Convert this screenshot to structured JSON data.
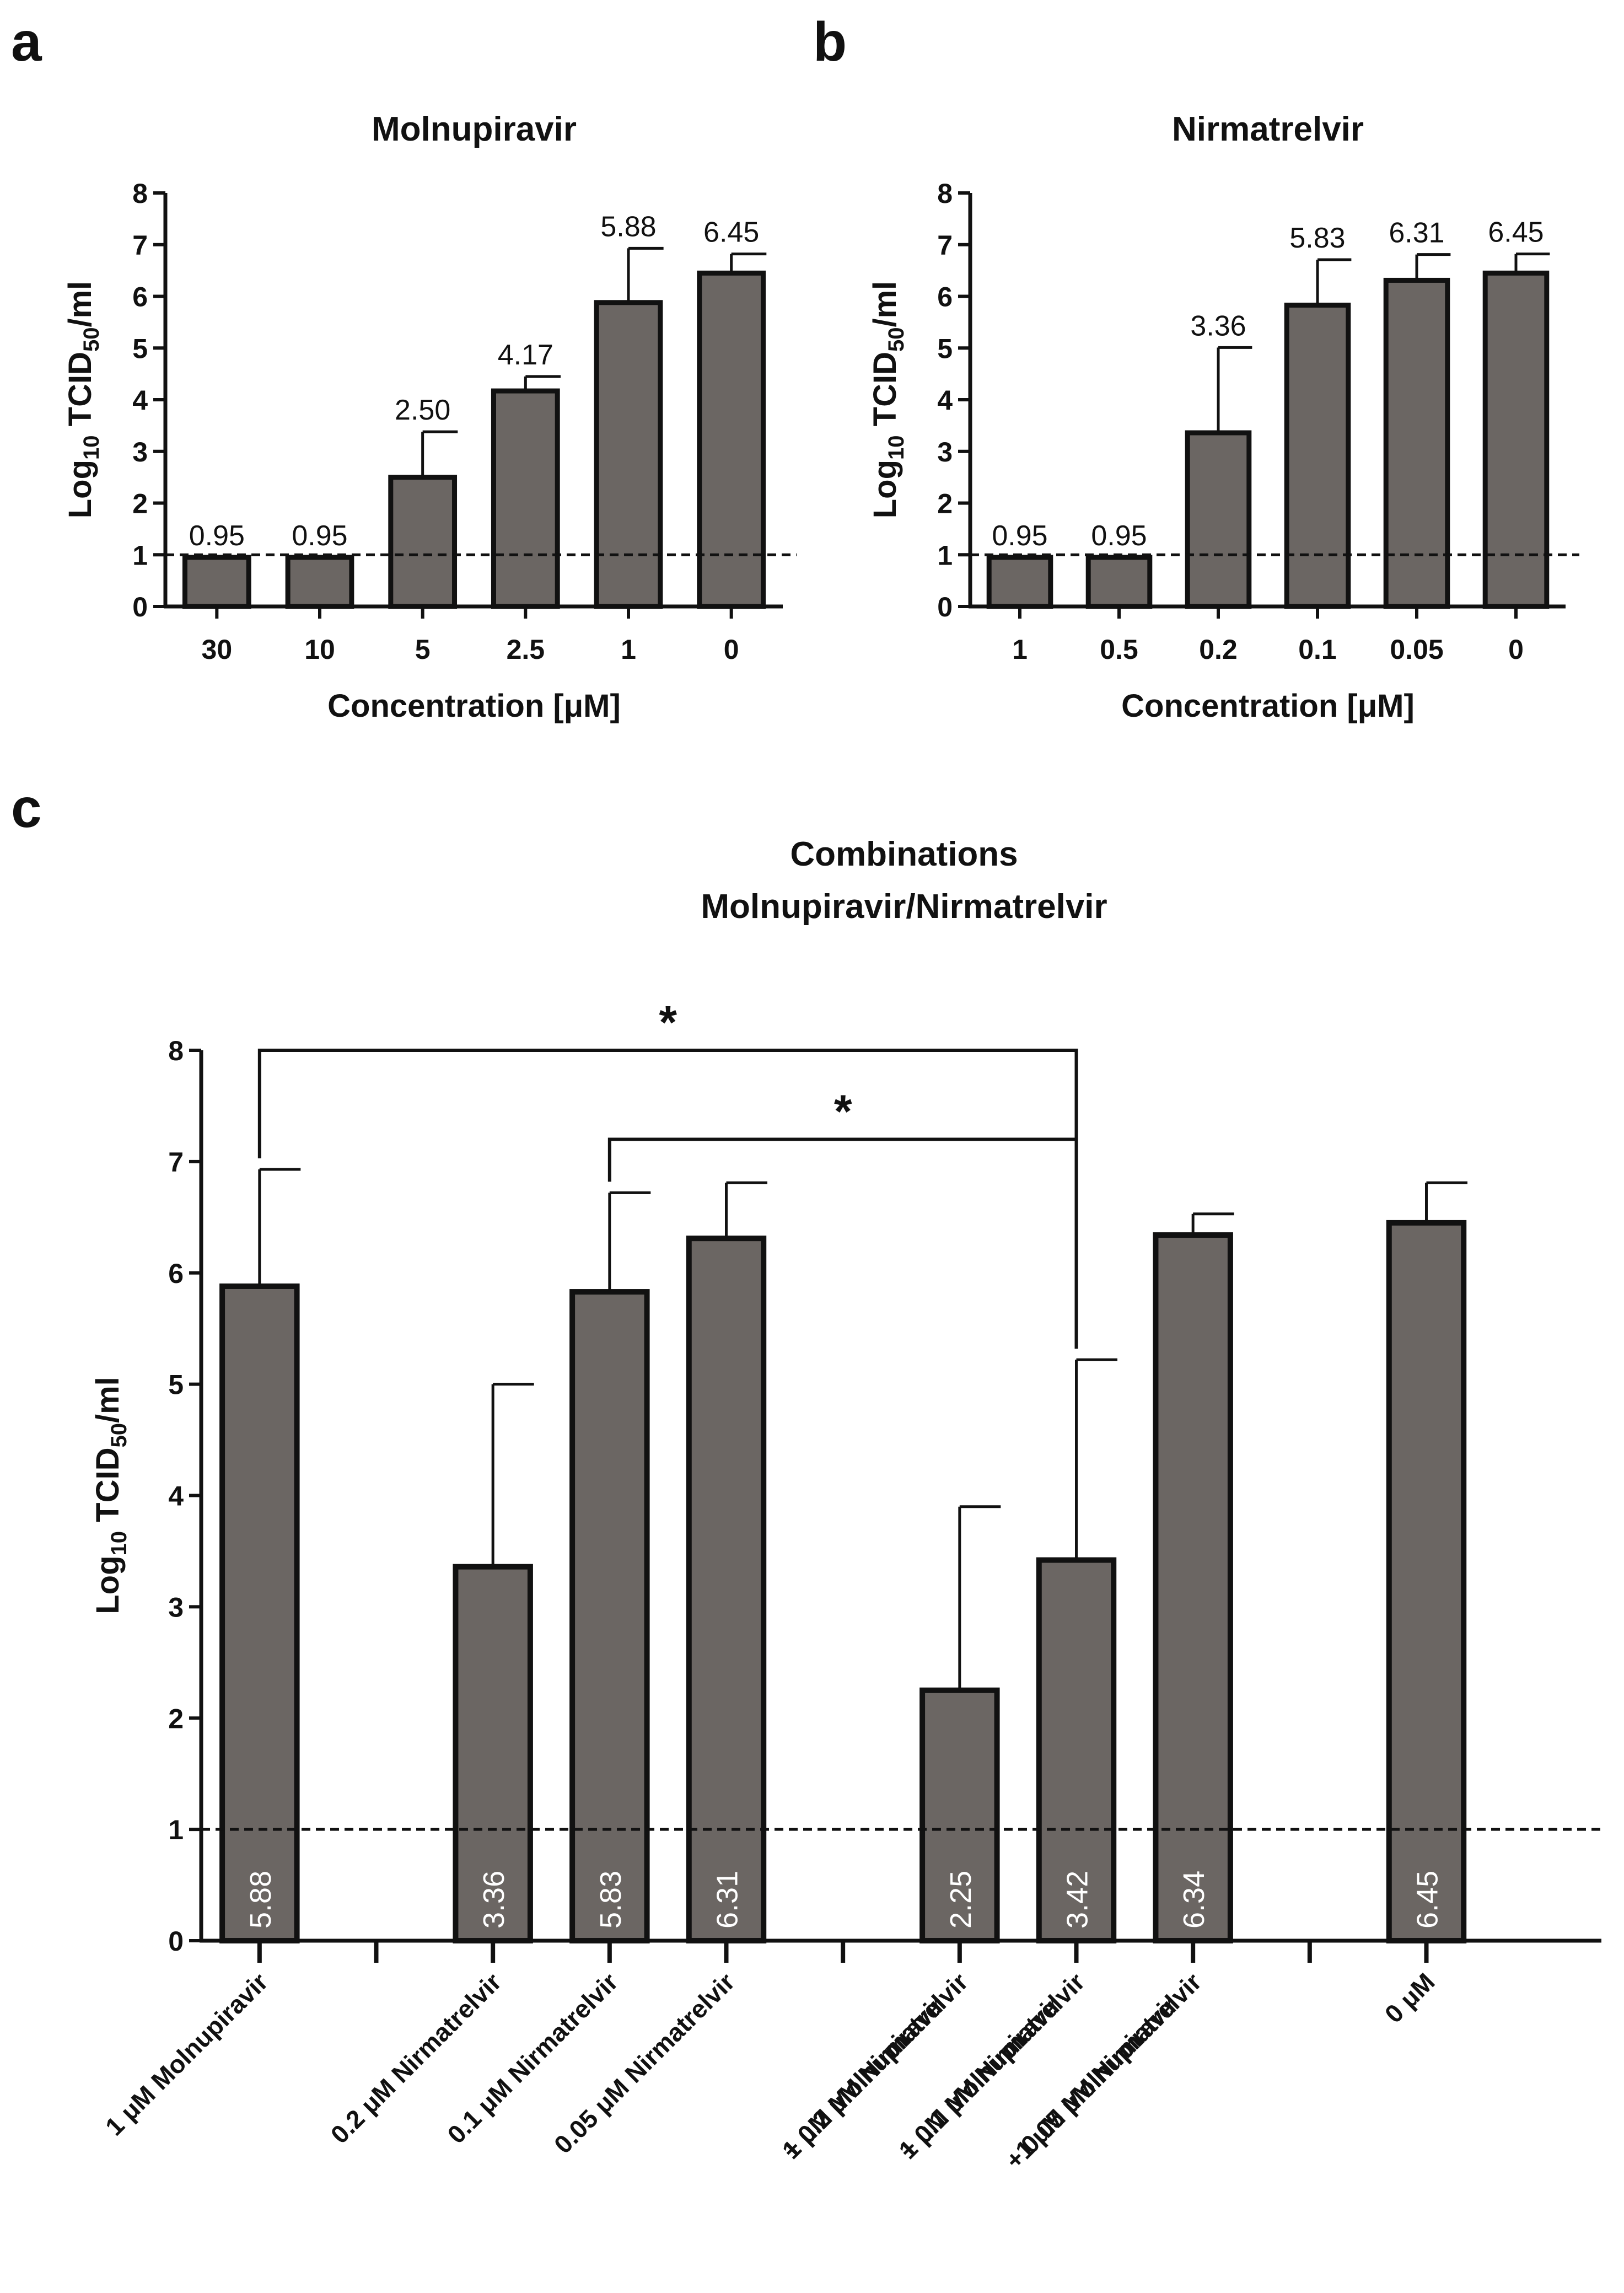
{
  "colors": {
    "bar_fill": "#6b6663",
    "bar_stroke": "#111111",
    "axis": "#111111",
    "threshold": "#111111",
    "inside_label": "#ffffff"
  },
  "chart_data": [
    {
      "panel": "a",
      "type": "bar",
      "title": "Molnupiravir",
      "xlabel": "Concentration [μM]",
      "ylabel_main": "Log",
      "ylabel_sub": "10",
      "ylabel_rest": " TCID",
      "ylabel_sub2": "50",
      "ylabel_end": "/ml",
      "ylim": [
        0,
        8
      ],
      "yticks": [
        0,
        1,
        2,
        3,
        4,
        5,
        6,
        7,
        8
      ],
      "threshold": 1,
      "categories": [
        "30",
        "10",
        "5",
        "2.5",
        "1",
        "0"
      ],
      "values": [
        0.95,
        0.95,
        2.5,
        4.17,
        5.88,
        6.45
      ],
      "value_labels": [
        "0.95",
        "0.95",
        "2.50",
        "4.17",
        "5.88",
        "6.45"
      ],
      "errors": [
        0,
        0,
        0.88,
        0.28,
        1.05,
        0.37
      ]
    },
    {
      "panel": "b",
      "type": "bar",
      "title": "Nirmatrelvir",
      "xlabel": "Concentration [μM]",
      "ylabel_main": "Log",
      "ylabel_sub": "10",
      "ylabel_rest": " TCID",
      "ylabel_sub2": "50",
      "ylabel_end": "/ml",
      "ylim": [
        0,
        8
      ],
      "yticks": [
        0,
        1,
        2,
        3,
        4,
        5,
        6,
        7,
        8
      ],
      "threshold": 1,
      "categories": [
        "1",
        "0.5",
        "0.2",
        "0.1",
        "0.05",
        "0"
      ],
      "values": [
        0.95,
        0.95,
        3.36,
        5.83,
        6.31,
        6.45
      ],
      "value_labels": [
        "0.95",
        "0.95",
        "3.36",
        "5.83",
        "6.31",
        "6.45"
      ],
      "errors": [
        0,
        0,
        1.65,
        0.88,
        0.5,
        0.37
      ]
    },
    {
      "panel": "c",
      "type": "bar",
      "title_line1": "Combinations",
      "title_line2": "Molnupiravir/Nirmatrelvir",
      "ylabel_main": "Log",
      "ylabel_sub": "10",
      "ylabel_rest": " TCID",
      "ylabel_sub2": "50",
      "ylabel_end": "/ml",
      "ylim": [
        0,
        8
      ],
      "yticks": [
        0,
        1,
        2,
        3,
        4,
        5,
        6,
        7,
        8
      ],
      "threshold": 1,
      "slots": 12,
      "bars": [
        {
          "slot": 0,
          "label_lines": [
            "1 μM Molnupiravir"
          ],
          "value": 5.88,
          "error": 1.05,
          "value_label": "5.88"
        },
        {
          "slot": 2,
          "label_lines": [
            "0.2 μM Nirmatrelvir"
          ],
          "value": 3.36,
          "error": 1.64,
          "value_label": "3.36"
        },
        {
          "slot": 3,
          "label_lines": [
            "0.1 μM Nirmatrelvir"
          ],
          "value": 5.83,
          "error": 0.89,
          "value_label": "5.83"
        },
        {
          "slot": 4,
          "label_lines": [
            "0.05 μM Nirmatrelvir"
          ],
          "value": 6.31,
          "error": 0.5,
          "value_label": "6.31"
        },
        {
          "slot": 6,
          "label_lines": [
            "1 μM Molnupiravir",
            "+ 0.2 μM Nirmatrelvir"
          ],
          "value": 2.25,
          "error": 1.65,
          "value_label": "2.25"
        },
        {
          "slot": 7,
          "label_lines": [
            "1 μM Molnupiravir",
            "+ 0.1 μM Nirmatrelvir"
          ],
          "value": 3.42,
          "error": 1.8,
          "value_label": "3.42"
        },
        {
          "slot": 8,
          "label_lines": [
            "1 μM Molnupiravir",
            "+ 0.05 μM Nirmatrelvir"
          ],
          "value": 6.34,
          "error": 0.19,
          "value_label": "6.34"
        },
        {
          "slot": 10,
          "label_lines": [
            "0 μM"
          ],
          "value": 6.45,
          "error": 0.36,
          "value_label": "6.45"
        }
      ],
      "separator_slots": [
        1,
        5,
        9
      ],
      "significance": [
        {
          "from_slot": 0,
          "to_slot": 7,
          "level": 8.0,
          "label": "*"
        },
        {
          "from_slot": 3,
          "to_slot": 7,
          "level": 7.2,
          "label": "*"
        }
      ]
    }
  ]
}
